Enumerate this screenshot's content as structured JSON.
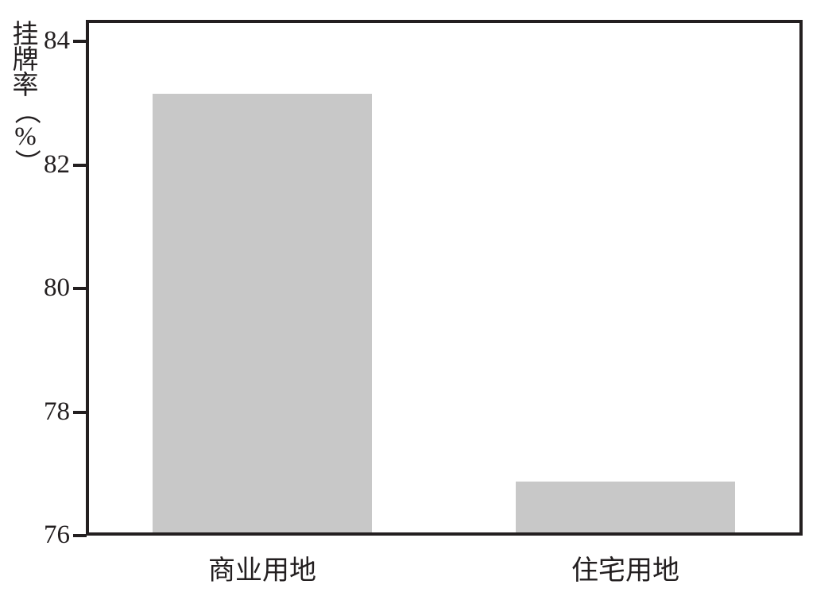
{
  "colors": {
    "background": "#ffffff",
    "bar_fill": "#c8c8c8",
    "axis": "#231f20",
    "text": "#231f20"
  },
  "chart_data": {
    "type": "bar",
    "title": "",
    "xlabel": "",
    "ylabel": "挂牌率（%）",
    "categories": [
      "商业用地",
      "住宅用地"
    ],
    "values": [
      83.15,
      76.88
    ],
    "yticks": [
      76,
      78,
      80,
      82,
      84
    ],
    "ylim": [
      76,
      84.35
    ],
    "grid": false,
    "legend": "none"
  }
}
